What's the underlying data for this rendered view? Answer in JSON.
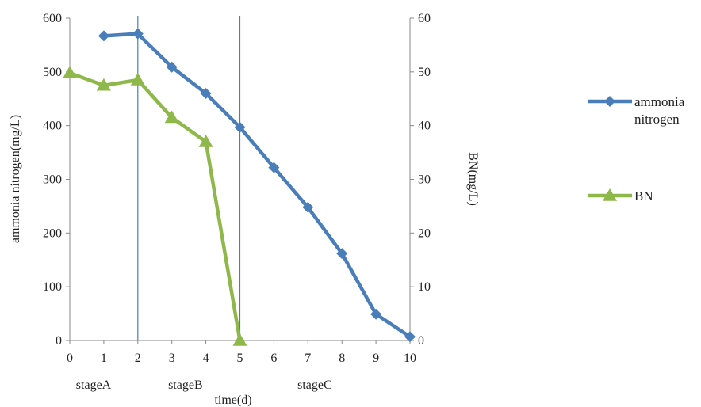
{
  "chart_data": {
    "type": "line",
    "xlabel": "time(d)",
    "ylabel_left": "ammonia nitrogen(mg/L)",
    "ylabel_right": "BN(mg/L)",
    "x_ticks": [
      "0",
      "1",
      "2",
      "3",
      "4",
      "5",
      "6",
      "7",
      "8",
      "9",
      "10"
    ],
    "xlim": [
      0,
      10
    ],
    "ylim_left": [
      0,
      600
    ],
    "ylim_right": [
      0,
      60
    ],
    "y_ticks_left": [
      "0",
      "100",
      "200",
      "300",
      "400",
      "500",
      "600"
    ],
    "y_ticks_right": [
      "0",
      "10",
      "20",
      "30",
      "40",
      "50",
      "60"
    ],
    "grid": false,
    "legend_position": "right",
    "stage_boundaries": [
      2,
      5
    ],
    "stages": [
      {
        "label": "stageA",
        "x": 0.7
      },
      {
        "label": "stageB",
        "x": 3.4
      },
      {
        "label": "stageC",
        "x": 7.2
      }
    ],
    "series": [
      {
        "name": "ammonia nitrogen",
        "axis": "left",
        "marker": "diamond",
        "color": "#4a7ebb",
        "x": [
          1,
          2,
          3,
          4,
          5,
          6,
          7,
          8,
          9,
          10
        ],
        "y": [
          567,
          571,
          509,
          460,
          397,
          322,
          248,
          162,
          49,
          7
        ]
      },
      {
        "name": "BN",
        "axis": "right",
        "marker": "triangle",
        "color": "#8eb84a",
        "x": [
          0,
          1,
          2,
          3,
          4,
          5
        ],
        "y": [
          49.8,
          47.5,
          48.5,
          41.5,
          37,
          0
        ]
      }
    ]
  }
}
